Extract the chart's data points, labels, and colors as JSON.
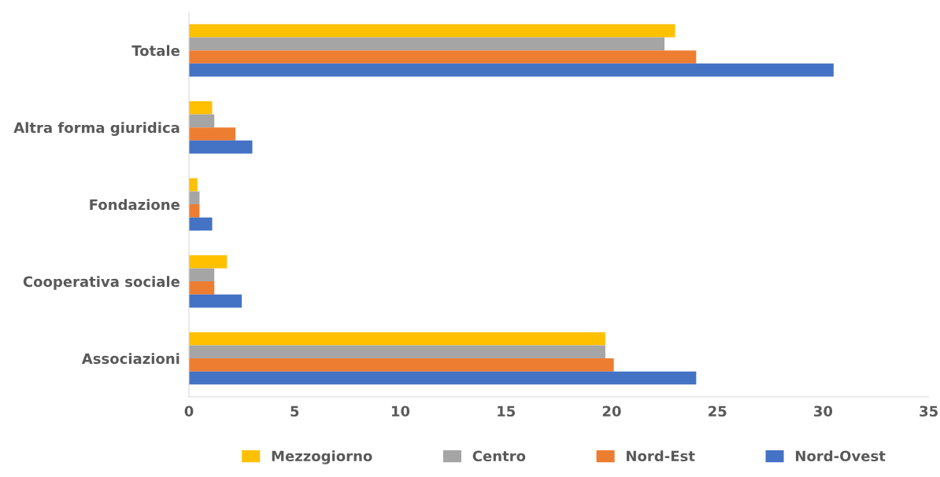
{
  "chart_data": {
    "type": "bar",
    "orientation": "horizontal",
    "categories": [
      "Totale",
      "Altra forma giuridica",
      "Fondazione",
      "Cooperativa sociale",
      "Associazioni"
    ],
    "series": [
      {
        "name": "Mezzogiorno",
        "color": "#ffc000",
        "values": [
          23.0,
          1.1,
          0.4,
          1.8,
          19.7
        ]
      },
      {
        "name": "Centro",
        "color": "#a5a5a5",
        "values": [
          22.5,
          1.2,
          0.5,
          1.2,
          19.7
        ]
      },
      {
        "name": "Nord-Est",
        "color": "#ed7d31",
        "values": [
          24.0,
          2.2,
          0.5,
          1.2,
          20.1
        ]
      },
      {
        "name": "Nord-Ovest",
        "color": "#4472c4",
        "values": [
          30.5,
          3.0,
          1.1,
          2.5,
          24.0
        ]
      }
    ],
    "xlim": [
      0,
      35
    ],
    "xticks": [
      0,
      5,
      10,
      15,
      20,
      25,
      30,
      35
    ],
    "grid": false,
    "legend": "bottom"
  }
}
